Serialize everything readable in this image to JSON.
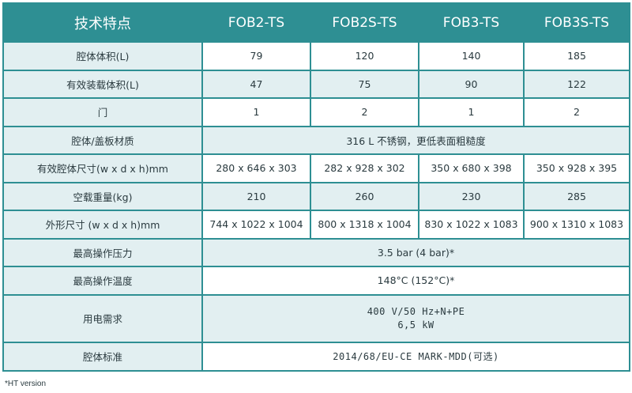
{
  "header": {
    "feature": "技术特点",
    "models": [
      "FOB2-TS",
      "FOB2S-TS",
      "FOB3-TS",
      "FOB3S-TS"
    ]
  },
  "rows": {
    "chamber_volume": {
      "label": "腔体体积(L)",
      "values": [
        "79",
        "120",
        "140",
        "185"
      ]
    },
    "effective_volume": {
      "label": "有效装载体积(L)",
      "values": [
        "47",
        "75",
        "90",
        "122"
      ]
    },
    "door": {
      "label": "门",
      "values": [
        "1",
        "2",
        "1",
        "2"
      ]
    },
    "material": {
      "label": "腔体/盖板材质",
      "value": "316 L 不锈钢，更低表面粗糙度"
    },
    "inner_dimensions": {
      "label": "有效腔体尺寸(w x d x h)mm",
      "values": [
        "280 x 646 x 303",
        "282 x 928 x 302",
        "350 x 680 x 398",
        "350 x 928 x 395"
      ]
    },
    "empty_weight": {
      "label": "空载重量(kg)",
      "values": [
        "210",
        "260",
        "230",
        "285"
      ]
    },
    "outer_dimensions": {
      "label": "外形尺寸 (w x d x h)mm",
      "values": [
        "744 x 1022 x 1004",
        "800 x 1318 x 1004",
        "830 x 1022 x 1083",
        "900 x 1310 x 1083"
      ]
    },
    "max_pressure": {
      "label": "最高操作压力",
      "value": "3.5 bar (4 bar)*"
    },
    "max_temperature": {
      "label": "最高操作温度",
      "value": "148°C (152°C)*"
    },
    "power": {
      "label": "用电需求",
      "line1": "400 V/50 Hz+N+PE",
      "line2": "6,5 kW"
    },
    "standard": {
      "label": "腔体标准",
      "value": "2014/68/EU-CE MARK-MDD(可选)"
    }
  },
  "footnote": "*HT version",
  "colors": {
    "header_bg": "#2e8f93",
    "row_tint": "#e2eff1",
    "border": "#2e8f93"
  }
}
